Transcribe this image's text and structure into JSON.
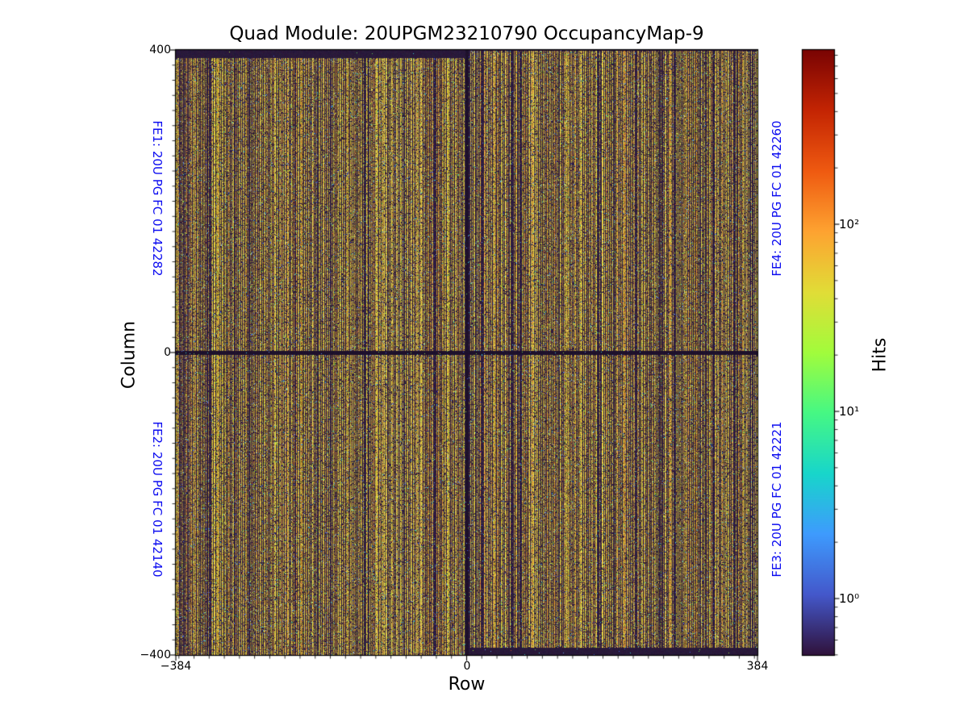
{
  "title": "Quad Module: 20UPGM23210790 OccupancyMap-9",
  "axes": {
    "xlabel": "Row",
    "ylabel": "Column",
    "xlim": [
      -384,
      384
    ],
    "ylim": [
      -400,
      400
    ],
    "x_ticks": [
      {
        "value": -384,
        "label": "−384"
      },
      {
        "value": 0,
        "label": "0"
      },
      {
        "value": 384,
        "label": "384"
      }
    ],
    "y_ticks": [
      {
        "value": 400,
        "label": "400"
      },
      {
        "value": 0,
        "label": "0"
      },
      {
        "value": -400,
        "label": "−400"
      }
    ],
    "minor_tick_step": 20
  },
  "fe_labels": [
    {
      "id": "FE1",
      "text": "FE1: 20U PG FC 01 42282",
      "position": "left-top"
    },
    {
      "id": "FE2",
      "text": "FE2: 20U PG FC 01 42140",
      "position": "left-bottom"
    },
    {
      "id": "FE4",
      "text": "FE4: 20U PG FC 01 42260",
      "position": "right-top"
    },
    {
      "id": "FE3",
      "text": "FE3: 20U PG FC 01 42221",
      "position": "right-bottom"
    }
  ],
  "colorbar": {
    "label": "Hits",
    "scale": "log",
    "colormap": "turbo",
    "vmin": 0.5,
    "vmax": 853,
    "ticks": [
      {
        "value": 100,
        "label": "10²"
      },
      {
        "value": 10,
        "label": "10¹"
      },
      {
        "value": 1,
        "label": "10⁰"
      }
    ],
    "gradient_stops": [
      "#30123b",
      "#4458cb",
      "#3e9bfe",
      "#18d6cb",
      "#46f884",
      "#a2fc3c",
      "#e1dd37",
      "#fea331",
      "#ef5a11",
      "#c42503",
      "#7a0403"
    ]
  },
  "colors": {
    "fe_label": "#0b0bf0",
    "text": "#000000",
    "background": "#ffffff",
    "low_occupancy": "#2d1c40"
  },
  "chart_data": {
    "type": "heatmap",
    "title": "Quad Module: 20UPGM23210790 OccupancyMap-9",
    "xlabel": "Row",
    "ylabel": "Column",
    "value_label": "Hits",
    "xlim": [
      -384,
      384
    ],
    "ylim": [
      -400,
      400
    ],
    "value_scale": "log",
    "value_range": [
      0.5,
      853
    ],
    "typical_hit_range": [
      20,
      120
    ],
    "grid": false,
    "legend_position": "right-colorbar",
    "quadrants": [
      {
        "chip": "FE1: 20U PG FC 01 42282",
        "region": "row<0, column>0"
      },
      {
        "chip": "FE2: 20U PG FC 01 42140",
        "region": "row<0, column<0"
      },
      {
        "chip": "FE4: 20U PG FC 01 42260",
        "region": "row>0, column>0"
      },
      {
        "chip": "FE3: 20U PG FC 01 42221",
        "region": "row>0, column<0"
      }
    ],
    "pattern": "dense vertical striping of mid-occupancy pixels (~30–100 hits, yellow/tan in turbo colormap) alternating with low-occupancy dark-purple pixel columns; sparse cyan/green/blue speckles of low hit counts scattered throughout",
    "dead_features": [
      "top edge rows of left half (row<0) nearly zero hits",
      "bottom edge rows of right half (row>0) nearly zero hits",
      "horizontal gap of low hits along column 0",
      "vertical gap of low hits along row 0"
    ]
  }
}
